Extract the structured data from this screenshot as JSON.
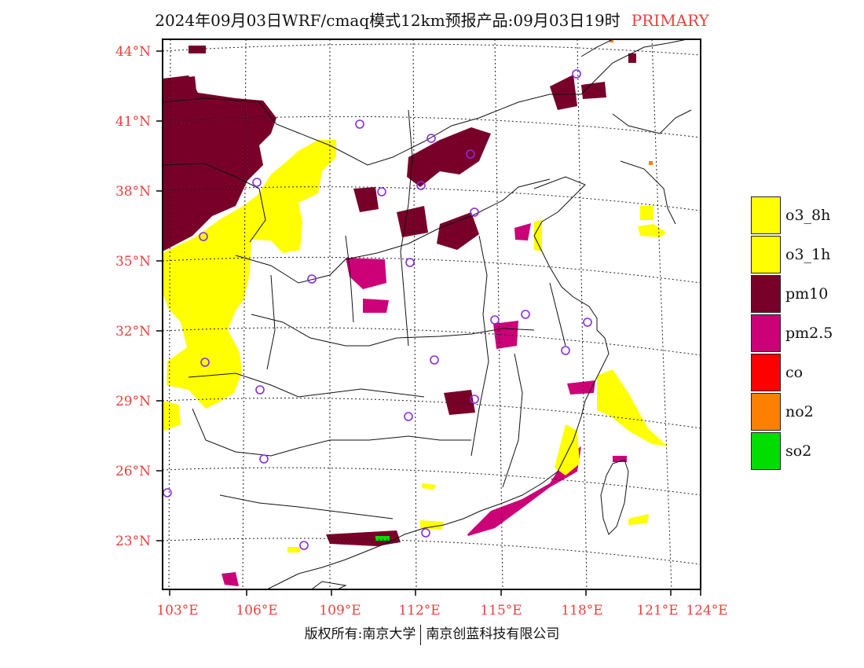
{
  "title": {
    "text": "2024年09月03日WRF/cmaq模式12km预报产品:09月03日19时",
    "tag": "PRIMARY"
  },
  "axes": {
    "lat_labels": [
      "44°N",
      "41°N",
      "38°N",
      "35°N",
      "32°N",
      "29°N",
      "26°N",
      "23°N"
    ],
    "lon_labels": [
      "103°E",
      "106°E",
      "109°E",
      "112°E",
      "115°E",
      "118°E",
      "121°E",
      "124°E"
    ]
  },
  "legend": {
    "items": [
      {
        "label": "o3_8h",
        "color": "#ffff00"
      },
      {
        "label": "o3_1h",
        "color": "#ffff00"
      },
      {
        "label": "pm10",
        "color": "#780028"
      },
      {
        "label": "pm2.5",
        "color": "#cc0077"
      },
      {
        "label": "co",
        "color": "#ff0000"
      },
      {
        "label": "no2",
        "color": "#ff7f00"
      },
      {
        "label": "so2",
        "color": "#00dd00"
      }
    ]
  },
  "credit": {
    "left": "版权所有:南京大学",
    "right": "南京创蓝科技有限公司"
  },
  "colors": {
    "pm10": "#780028",
    "pm25": "#cc0077",
    "o3": "#ffff00",
    "no2": "#ff7f00",
    "so2": "#00dd00",
    "station": "#8a2be2",
    "label": "#e8413e"
  }
}
